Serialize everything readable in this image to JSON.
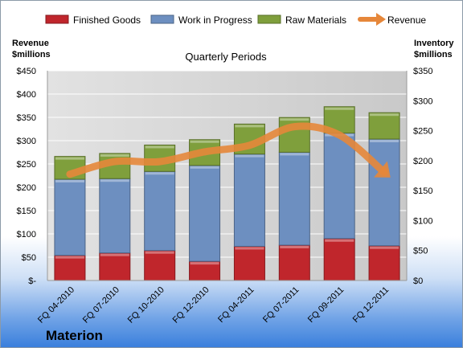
{
  "company": "Materion",
  "chart_data": {
    "type": "bar",
    "stacked": true,
    "subtitle": "Quarterly Periods",
    "categories": [
      "FQ 04-2010",
      "FQ 07-2010",
      "FQ 10-2010",
      "FQ 12-2010",
      "FQ 04-2011",
      "FQ 07-2011",
      "FQ 09-2011",
      "FQ 12-2011"
    ],
    "series": [
      {
        "name": "Finished Goods",
        "axis": "right",
        "color": "#c0262c",
        "values": [
          42,
          46,
          50,
          32,
          57,
          59,
          70,
          58
        ]
      },
      {
        "name": "Work in Progress",
        "axis": "right",
        "color": "#6d8fc0",
        "values": [
          127,
          124,
          132,
          160,
          154,
          155,
          176,
          178
        ]
      },
      {
        "name": "Raw Materials",
        "axis": "right",
        "color": "#7f9f3c",
        "values": [
          38,
          42,
          44,
          43,
          50,
          58,
          44,
          44
        ]
      }
    ],
    "line": {
      "name": "Revenue",
      "axis": "left",
      "color": "#e6873a",
      "values": [
        228,
        255,
        255,
        276,
        290,
        330,
        312,
        232
      ]
    },
    "left_axis": {
      "label_line1": "Revenue",
      "label_line2": "$millions",
      "min": 0,
      "max": 450,
      "step": 50,
      "ticks": [
        "$-",
        "$50",
        "$100",
        "$150",
        "$200",
        "$250",
        "$300",
        "$350",
        "$400",
        "$450"
      ]
    },
    "right_axis": {
      "label_line1": "Inventory",
      "label_line2": "$millions",
      "min": 0,
      "max": 350,
      "step": 50,
      "ticks": [
        "$0",
        "$50",
        "$100",
        "$150",
        "$200",
        "$250",
        "$300",
        "$350"
      ]
    },
    "grid": true,
    "legend": "top"
  }
}
